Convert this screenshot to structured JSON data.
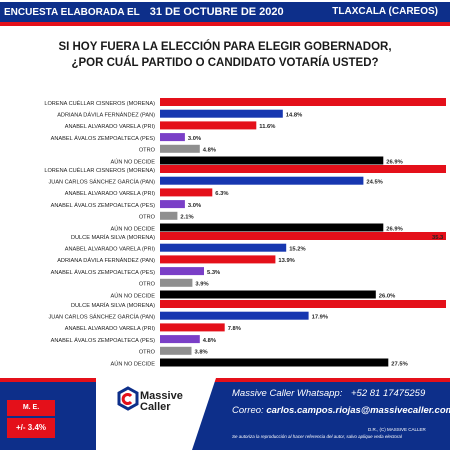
{
  "header": {
    "survey_label": "ENCUESTA ELABORADA EL",
    "date": "31 DE OCTUBRE DE 2020",
    "region": "TLAXCALA (CAREOS)"
  },
  "question": {
    "line1": "SI HOY FUERA LA ELECCIÓN PARA ELEGIR GOBERNADOR,",
    "line2": "¿POR CUÁL PARTIDO O CANDIDATO VOTARÍA USTED?"
  },
  "chart_data": [
    {
      "type": "bar",
      "orientation": "horizontal",
      "categories": [
        "LORENA CUÉLLAR CISNEROS (MORENA)",
        "ADRIANA DÁVILA FERNÁNDEZ (PAN)",
        "ANABEL ALVARADO VARELA (PRI)",
        "ANABEL ÁVALOS ZEMPOALTECA (PES)",
        "OTRO",
        "AÚN NO DECIDE"
      ],
      "values": [
        null,
        14.8,
        11.6,
        3.0,
        4.8,
        26.9
      ],
      "value_labels": [
        "",
        "14.8%",
        "11.6%",
        "3.0%",
        "4.8%",
        "26.9%"
      ],
      "colors": [
        "#e4101a",
        "#1737b0",
        "#e4101a",
        "#7a3fc7",
        "#8f8f8f",
        "#000000"
      ]
    },
    {
      "type": "bar",
      "orientation": "horizontal",
      "categories": [
        "LORENA CUÉLLAR CISNEROS (MORENA)",
        "JUAN CARLOS SÁNCHEZ GARCÍA (PAN)",
        "ANABEL ALVARADO VARELA (PRI)",
        "ANABEL ÁVALOS ZEMPOALTECA (PES)",
        "OTRO",
        "AÚN NO DECIDE"
      ],
      "values": [
        null,
        24.5,
        6.3,
        3.0,
        2.1,
        26.9
      ],
      "value_labels": [
        "",
        "24.5%",
        "6.3%",
        "3.0%",
        "2.1%",
        "26.9%"
      ],
      "colors": [
        "#e4101a",
        "#1737b0",
        "#e4101a",
        "#7a3fc7",
        "#8f8f8f",
        "#000000"
      ]
    },
    {
      "type": "bar",
      "orientation": "horizontal",
      "categories": [
        "DULCE MARÍA SILVA (MORENA)",
        "ANABEL ALVARADO VARELA (PRI)",
        "ADRIANA DÁVILA FERNÁNDEZ (PAN)",
        "ANABEL ÁVALOS ZEMPOALTECA (PES)",
        "OTRO",
        "AÚN NO DECIDE"
      ],
      "values": [
        35.3,
        15.2,
        13.9,
        5.3,
        3.9,
        26.0
      ],
      "value_labels": [
        "35.3",
        "15.2%",
        "13.9%",
        "5.3%",
        "3.9%",
        "26.0%"
      ],
      "colors": [
        "#e4101a",
        "#1737b0",
        "#e4101a",
        "#7a3fc7",
        "#8f8f8f",
        "#000000"
      ]
    },
    {
      "type": "bar",
      "orientation": "horizontal",
      "categories": [
        "DULCE MARÍA SILVA (MORENA)",
        "JUAN CARLOS SÁNCHEZ GARCÍA (PAN)",
        "ANABEL ALVARADO VARELA (PRI)",
        "ANABEL ÁVALOS ZEMPOALTECA (PES)",
        "OTRO",
        "AÚN NO DECIDE"
      ],
      "values": [
        null,
        17.9,
        7.8,
        4.8,
        3.8,
        27.5
      ],
      "value_labels": [
        "",
        "17.9%",
        "7.8%",
        "4.8%",
        "3.8%",
        "27.5%"
      ],
      "colors": [
        "#e4101a",
        "#1737b0",
        "#e4101a",
        "#7a3fc7",
        "#8f8f8f",
        "#000000"
      ]
    }
  ],
  "footer": {
    "me_label": "M. E.",
    "me_value": "+/- 3.4%",
    "logo_line1": "Massive",
    "logo_line2": "Caller",
    "whatsapp_label": "Massive Caller Whatsapp:",
    "whatsapp_number": "+52 81 17475259",
    "email_label": "Correo:",
    "email": "carlos.campos.riojas@massivecaller.com",
    "rights": "D.R., (C) MASSIVE CALLER",
    "reproduction_note": "Se autoriza la reproducción al hacer referencia del autor, salvo aplique veda electoral"
  }
}
